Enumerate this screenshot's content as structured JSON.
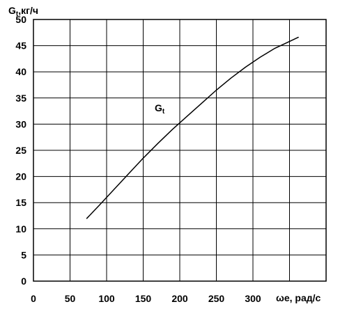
{
  "chart_data": {
    "type": "line",
    "title": "",
    "ylabel": {
      "main": "G",
      "sub": "t",
      "rest": ",кг/ч"
    },
    "xlabel": "ωe, рад/с",
    "xlim": [
      0,
      400
    ],
    "ylim": [
      0,
      50
    ],
    "x_ticks": [
      0,
      50,
      100,
      150,
      200,
      250,
      300
    ],
    "x_tick_labels": [
      "0",
      "50",
      "100",
      "150",
      "200",
      "250",
      "300"
    ],
    "y_ticks": [
      0,
      5,
      10,
      15,
      20,
      25,
      30,
      35,
      40,
      45,
      50
    ],
    "y_tick_labels": [
      "0",
      "5",
      "10",
      "15",
      "20",
      "25",
      "30",
      "35",
      "40",
      "45",
      "50"
    ],
    "grid": true,
    "series": [
      {
        "name": {
          "main": "G",
          "sub": "t"
        },
        "color": "#000000",
        "x": [
          73,
          90,
          110,
          130,
          150,
          170,
          190,
          210,
          230,
          250,
          270,
          290,
          310,
          330,
          350,
          362
        ],
        "y": [
          12.0,
          14.5,
          17.5,
          20.5,
          23.5,
          26.3,
          29.0,
          31.5,
          34.0,
          36.5,
          38.8,
          40.9,
          42.8,
          44.5,
          45.8,
          46.6
        ]
      }
    ]
  }
}
